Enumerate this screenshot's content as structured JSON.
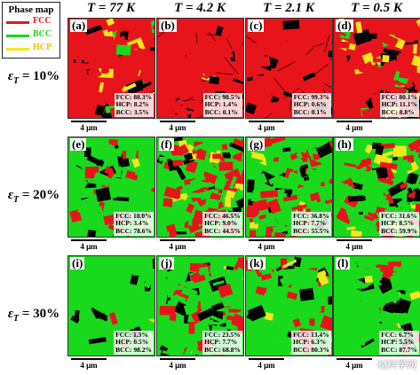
{
  "legend": {
    "title": "Phase map",
    "items": [
      {
        "label": "FCC",
        "color": "#e8141c"
      },
      {
        "label": "BCC",
        "color": "#19d91c"
      },
      {
        "label": "HCP",
        "color": "#f5e61a"
      }
    ]
  },
  "columns": [
    {
      "label": "T = 77 K"
    },
    {
      "label": "T = 4.2 K"
    },
    {
      "label": "T = 2.1 K"
    },
    {
      "label": "T = 0.5 K"
    }
  ],
  "rows": [
    {
      "label": "10%"
    },
    {
      "label": "20%"
    },
    {
      "label": "30%"
    }
  ],
  "strain_symbol": "ε",
  "strain_sub": "T",
  "scale_bar": "4 μm",
  "watermark": "材料学网",
  "panels": [
    {
      "letter": "(a)",
      "fcc": 88.3,
      "hcp": 8.2,
      "bcc": 3.5,
      "stats": [
        "FCC: 88.3%",
        "HCP: 8.2%",
        "BCC: 3.5%"
      ]
    },
    {
      "letter": "(b)",
      "fcc": 98.5,
      "hcp": 1.4,
      "bcc": 0.1,
      "stats": [
        "FCC: 98.5%",
        "HCP: 1.4%",
        "BCC: 0.1%"
      ]
    },
    {
      "letter": "(c)",
      "fcc": 99.3,
      "hcp": 0.6,
      "bcc": 0.1,
      "stats": [
        "FCC: 99.3%",
        "HCP: 0.6%",
        "BCC: 0.1%"
      ]
    },
    {
      "letter": "(d)",
      "fcc": 80.1,
      "hcp": 11.1,
      "bcc": 8.8,
      "stats": [
        "FCC: 80.1%",
        "HCP: 11.1%",
        "BCC: 8.8%"
      ]
    },
    {
      "letter": "(e)",
      "fcc": 18.0,
      "hcp": 3.4,
      "bcc": 78.6,
      "stats": [
        "FCC: 18.0%",
        "HCP: 3.4%",
        "BCC: 78.6%"
      ]
    },
    {
      "letter": "(f)",
      "fcc": 46.5,
      "hcp": 9.0,
      "bcc": 44.5,
      "stats": [
        "FCC: 46.5%",
        "HCP: 9.0%",
        "BCC: 44.5%"
      ]
    },
    {
      "letter": "(g)",
      "fcc": 36.8,
      "hcp": 7.7,
      "bcc": 55.5,
      "stats": [
        "FCC: 36.8%",
        "HCP: 7.7%",
        "BCC: 55.5%"
      ]
    },
    {
      "letter": "(h)",
      "fcc": 31.6,
      "hcp": 8.5,
      "bcc": 59.9,
      "stats": [
        "FCC: 31.6%",
        "HCP: 8.5%",
        "BCC: 59.9%"
      ]
    },
    {
      "letter": "(i)",
      "fcc": 1.3,
      "hcp": 0.5,
      "bcc": 98.2,
      "stats": [
        "FCC: 1.3%",
        "HCP: 0.5%",
        "BCC: 98.2%"
      ]
    },
    {
      "letter": "(j)",
      "fcc": 23.5,
      "hcp": 7.7,
      "bcc": 68.8,
      "stats": [
        "FCC: 23.5%",
        "HCP: 7.7%",
        "BCC: 68.8%"
      ]
    },
    {
      "letter": "(k)",
      "fcc": 13.4,
      "hcp": 6.3,
      "bcc": 80.3,
      "stats": [
        "FCC: 13.4%",
        "HCP: 6.3%",
        "BCC: 80.3%"
      ]
    },
    {
      "letter": "(l)",
      "fcc": 6.7,
      "hcp": 5.5,
      "bcc": 87.7,
      "stats": [
        "FCC: 6.7%",
        "HCP: 5.5%",
        "BCC: 87.7%"
      ]
    }
  ]
}
